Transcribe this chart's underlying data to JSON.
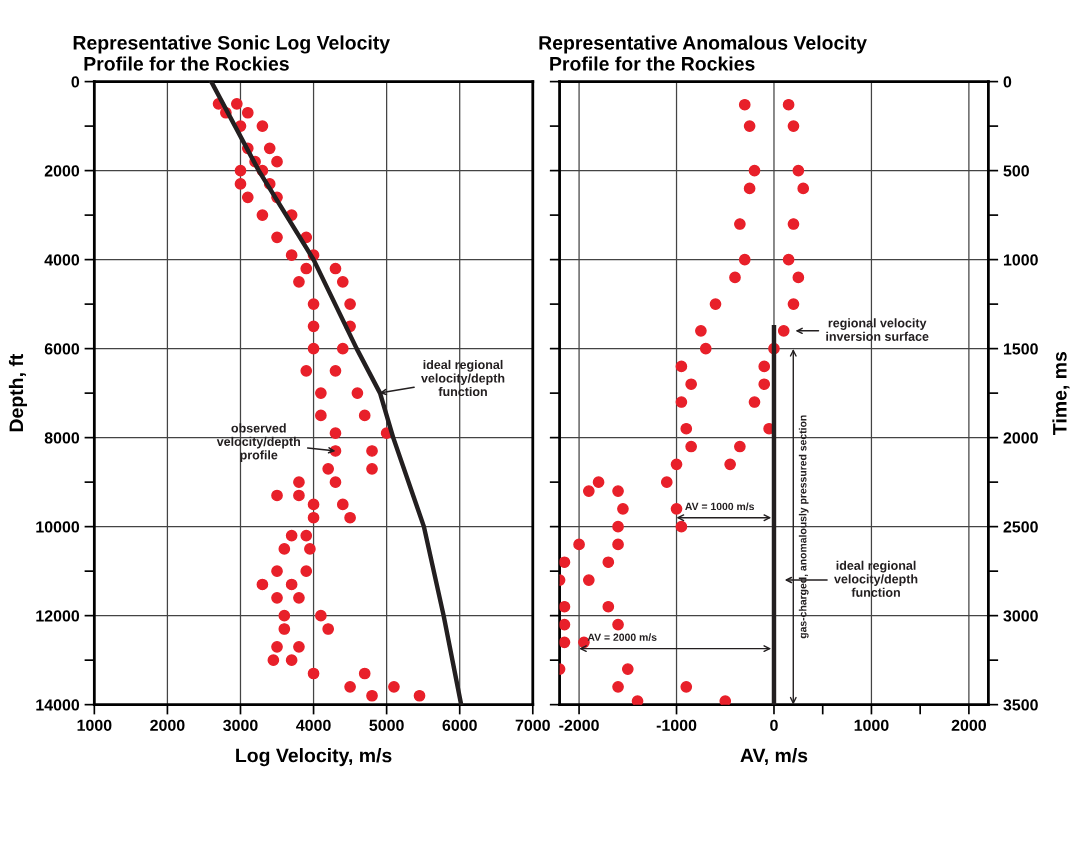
{
  "chart_data": [
    {
      "type": "scatter",
      "title": "Representative Sonic Log Velocity\n  Profile for the Rockies",
      "xlabel": "Log Velocity, m/s",
      "ylabel": "Depth, ft",
      "xlim": [
        1000,
        7000
      ],
      "xticks": [
        1000,
        2000,
        3000,
        4000,
        5000,
        6000,
        7000
      ],
      "ylim": [
        14000,
        0
      ],
      "yticks": [
        0,
        {
          "value": 1000,
          "label": null
        },
        2000,
        {
          "value": 3000,
          "label": null
        },
        4000,
        {
          "value": 5000,
          "label": null
        },
        6000,
        {
          "value": 7000,
          "label": null
        },
        8000,
        {
          "value": 9000,
          "label": null
        },
        10000,
        {
          "value": 11000,
          "label": null
        },
        12000,
        {
          "value": 13000,
          "label": null
        },
        14000
      ],
      "grid": true,
      "marker": "circle",
      "series": [
        {
          "color": "#e8202a",
          "x": [
            2700,
            2950,
            2800,
            3100,
            3000,
            3300,
            3100,
            3400,
            3200,
            3500,
            3000,
            3300,
            3000,
            3400,
            3100,
            3500,
            3300,
            3700,
            3500,
            3900,
            3700,
            4000,
            3900,
            4300,
            3800,
            4400,
            4000,
            4500,
            4000,
            4500,
            4000,
            4400,
            3900,
            4300,
            4100,
            4600,
            4100,
            4700,
            4300,
            5000,
            4300,
            4800,
            4200,
            4800,
            3800,
            4300,
            3500,
            3800,
            4000,
            4400,
            4000,
            4500,
            3700,
            3900,
            3600,
            3950,
            3500,
            3900,
            3300,
            3700,
            3500,
            3800,
            3600,
            4100,
            3600,
            4200,
            3500,
            3800,
            3450,
            3700,
            4000,
            4700,
            4500,
            5100,
            4800,
            5450
          ],
          "values": [
            500,
            500,
            700,
            700,
            1000,
            1000,
            1500,
            1500,
            1800,
            1800,
            2000,
            2000,
            2300,
            2300,
            2600,
            2600,
            3000,
            3000,
            3500,
            3500,
            3900,
            3900,
            4200,
            4200,
            4500,
            4500,
            5000,
            5000,
            5500,
            5500,
            6000,
            6000,
            6500,
            6500,
            7000,
            7000,
            7500,
            7500,
            7900,
            7900,
            8300,
            8300,
            8700,
            8700,
            9000,
            9000,
            9300,
            9300,
            9500,
            9500,
            9800,
            9800,
            10200,
            10200,
            10500,
            10500,
            11000,
            11000,
            11300,
            11300,
            11600,
            11600,
            12000,
            12000,
            12300,
            12300,
            12700,
            12700,
            13000,
            13000,
            13300,
            13300,
            13600,
            13600,
            13800,
            13800
          ]
        },
        {
          "type": "line",
          "color": "#231f20",
          "marker": "none",
          "line_style": "solid",
          "x": [
            2600,
            3250,
            4000,
            4590,
            4910,
            5090,
            5510,
            5780,
            6020
          ],
          "values": [
            0,
            2000,
            4000,
            6000,
            7000,
            8000,
            10000,
            12000,
            14000
          ]
        }
      ],
      "annotations": [
        {
          "text": "ideal regional\nvelocity/depth\nfunction",
          "x": 4900,
          "y": 7000
        },
        {
          "text": "observed\nvelocity/depth\nprofile",
          "x": 4300,
          "y": 8300
        }
      ]
    },
    {
      "type": "scatter",
      "title": "Representative Anomalous Velocity\n  Profile for the Rockies",
      "xlabel": "AV, m/s",
      "ylabel": "Time, ms",
      "xlim": [
        -2200,
        2200
      ],
      "xticks": [
        -2000,
        -1000,
        0,
        {
          "value": 500,
          "label": null
        },
        1000,
        {
          "value": 1500,
          "label": null
        },
        2000
      ],
      "ylim": [
        3500,
        0
      ],
      "yticks": [
        0,
        {
          "value": 250,
          "label": null
        },
        500,
        {
          "value": 750,
          "label": null
        },
        1000,
        {
          "value": 1250,
          "label": null
        },
        1500,
        {
          "value": 1750,
          "label": null
        },
        2000,
        {
          "value": 2250,
          "label": null
        },
        2500,
        {
          "value": 2750,
          "label": null
        },
        3000,
        {
          "value": 3250,
          "label": null
        },
        3500
      ],
      "grid": true,
      "marker": "circle",
      "series": [
        {
          "color": "#e8202a",
          "x": [
            -300,
            150,
            -250,
            200,
            -200,
            250,
            -250,
            300,
            -350,
            200,
            -300,
            150,
            -400,
            250,
            -600,
            200,
            -750,
            100,
            -700,
            0,
            -950,
            -100,
            -850,
            -100,
            -950,
            -200,
            -900,
            -50,
            -850,
            -350,
            -1000,
            -450,
            -1800,
            -1100,
            -1900,
            -1600,
            -1550,
            -1000,
            -1600,
            -950,
            -2000,
            -1600,
            -2150,
            -1700,
            -2200,
            -1900,
            -2150,
            -1700,
            -2150,
            -1600,
            -2150,
            -1950,
            -2200,
            -1500,
            -1600,
            -900,
            -1400,
            -500
          ],
          "values": [
            130,
            130,
            250,
            250,
            500,
            500,
            600,
            600,
            800,
            800,
            1000,
            1000,
            1100,
            1100,
            1250,
            1250,
            1400,
            1400,
            1500,
            1500,
            1600,
            1600,
            1700,
            1700,
            1800,
            1800,
            1950,
            1950,
            2050,
            2050,
            2150,
            2150,
            2250,
            2250,
            2300,
            2300,
            2400,
            2400,
            2500,
            2500,
            2600,
            2600,
            2700,
            2700,
            2800,
            2800,
            2950,
            2950,
            3050,
            3050,
            3150,
            3150,
            3300,
            3300,
            3400,
            3400,
            3480,
            3480
          ]
        },
        {
          "type": "line",
          "color": "#231f20",
          "marker": "none",
          "line_style": "solid",
          "x": [
            0,
            0
          ],
          "values": [
            1380,
            3500
          ]
        }
      ],
      "annotations": [
        "regional velocity\ninversion surface",
        "ideal regional\nvelocity/depth\nfunction",
        {
          "text": "AV = 1000 m/s",
          "x": -1000,
          "y": 2450
        },
        {
          "text": "AV = 2000 m/s",
          "x": -2000,
          "y": 3185
        },
        "gas-charged, anomalously pressured section"
      ]
    }
  ]
}
